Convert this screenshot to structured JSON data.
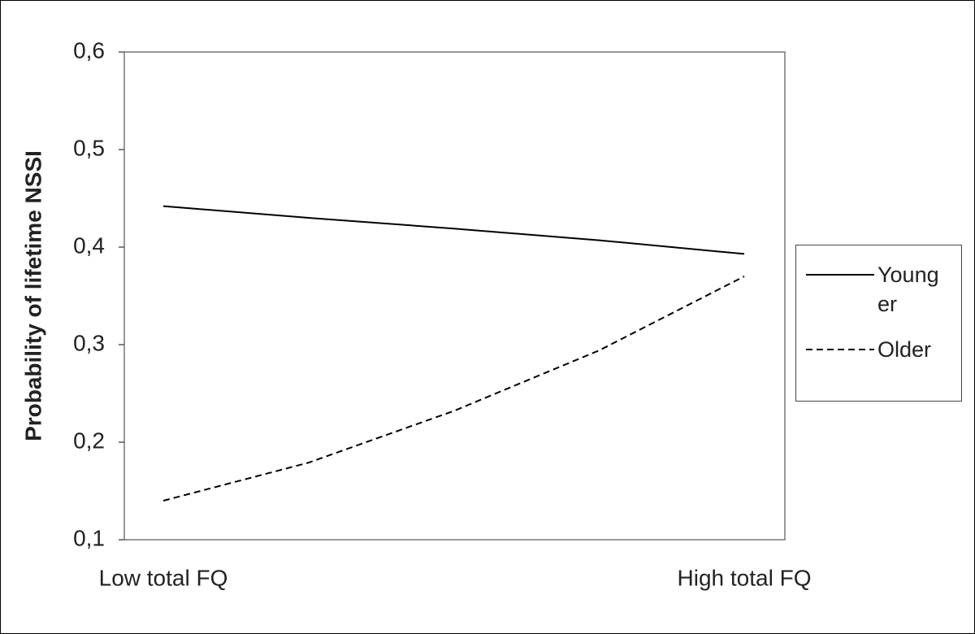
{
  "chart_data": {
    "type": "line",
    "y_label": "Probability of lifetime NSSI",
    "categories": [
      "Low total FQ",
      null,
      null,
      null,
      "High total FQ"
    ],
    "series": [
      {
        "name": "Younger",
        "color": "#000000",
        "style": "solid",
        "values": [
          0.442,
          0.43,
          0.419,
          0.407,
          0.393
        ]
      },
      {
        "name": "Older",
        "color": "#000000",
        "style": "dashed",
        "values": [
          0.14,
          0.179,
          0.232,
          0.294,
          0.37
        ]
      }
    ],
    "ylim": [
      0.1,
      0.6
    ],
    "yticks": [
      {
        "value": 0.1,
        "label": "0,1"
      },
      {
        "value": 0.2,
        "label": "0,2"
      },
      {
        "value": 0.3,
        "label": "0,3"
      },
      {
        "value": 0.4,
        "label": "0,4"
      },
      {
        "value": 0.5,
        "label": "0,5"
      },
      {
        "value": 0.6,
        "label": "0,6"
      }
    ],
    "legend": "right"
  }
}
